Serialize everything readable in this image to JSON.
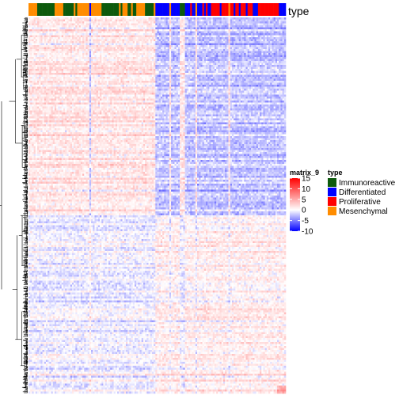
{
  "chart_data": {
    "type": "heatmap",
    "annotation_name": "type",
    "matrix_legend": {
      "title": "matrix_9",
      "ticks": [
        15,
        10,
        5,
        0,
        -5,
        -10
      ],
      "range": [
        -10,
        15
      ],
      "colors": {
        "low": "#0000ff",
        "mid": "#ffffff",
        "high": "#ff0000"
      }
    },
    "annotation_legend": {
      "title": "type",
      "entries": [
        {
          "label": "Immunoreactive",
          "color": "#0d5a0d"
        },
        {
          "label": "Differentiated",
          "color": "#0000ff"
        },
        {
          "label": "Proliferative",
          "color": "#ff0000"
        },
        {
          "label": "Mesenchymal",
          "color": "#ff8c00"
        }
      ]
    },
    "column_annotation": [
      "Mesenchymal",
      "Mesenchymal",
      "Mesenchymal",
      "Mesenchymal",
      "Mesenchymal",
      "Immunoreactive",
      "Immunoreactive",
      "Immunoreactive",
      "Immunoreactive",
      "Immunoreactive",
      "Immunoreactive",
      "Immunoreactive",
      "Immunoreactive",
      "Immunoreactive",
      "Immunoreactive",
      "Mesenchymal",
      "Mesenchymal",
      "Mesenchymal",
      "Mesenchymal",
      "Mesenchymal",
      "Immunoreactive",
      "Immunoreactive",
      "Immunoreactive",
      "Immunoreactive",
      "Immunoreactive",
      "Immunoreactive",
      "Mesenchymal",
      "Immunoreactive",
      "Mesenchymal",
      "Mesenchymal",
      "Mesenchymal",
      "Mesenchymal",
      "Mesenchymal",
      "Mesenchymal",
      "Mesenchymal",
      "Differentiated",
      "Mesenchymal",
      "Mesenchymal",
      "Mesenchymal",
      "Mesenchymal",
      "Mesenchymal",
      "Mesenchymal",
      "Immunoreactive",
      "Immunoreactive",
      "Immunoreactive",
      "Immunoreactive",
      "Immunoreactive",
      "Immunoreactive",
      "Immunoreactive",
      "Immunoreactive",
      "Immunoreactive",
      "Immunoreactive",
      "Mesenchymal",
      "Immunoreactive",
      "Mesenchymal",
      "Mesenchymal",
      "Mesenchymal",
      "Immunoreactive",
      "Immunoreactive",
      "Mesenchymal",
      "Immunoreactive",
      "Immunoreactive",
      "Mesenchymal",
      "Mesenchymal",
      "Mesenchymal",
      "Mesenchymal",
      "Mesenchymal",
      "Immunoreactive",
      "Immunoreactive",
      "Immunoreactive",
      "Immunoreactive",
      "Immunoreactive",
      "Mesenchymal",
      "Differentiated",
      "Differentiated",
      "Differentiated",
      "Differentiated",
      "Differentiated",
      "Differentiated",
      "Differentiated",
      "Differentiated",
      "Mesenchymal",
      "Differentiated",
      "Differentiated",
      "Differentiated",
      "Differentiated",
      "Differentiated",
      "Immunoreactive",
      "Immunoreactive",
      "Immunoreactive",
      "Differentiated",
      "Differentiated",
      "Differentiated",
      "Proliferative",
      "Differentiated",
      "Differentiated",
      "Mesenchymal",
      "Differentiated",
      "Differentiated",
      "Differentiated",
      "Proliferative",
      "Differentiated",
      "Proliferative",
      "Differentiated",
      "Differentiated",
      "Proliferative",
      "Proliferative",
      "Proliferative",
      "Proliferative",
      "Proliferative",
      "Differentiated",
      "Proliferative",
      "Proliferative",
      "Proliferative",
      "Proliferative",
      "Mesenchymal",
      "Proliferative",
      "Proliferative",
      "Differentiated",
      "Proliferative",
      "Proliferative",
      "Differentiated",
      "Proliferative",
      "Proliferative",
      "Proliferative",
      "Differentiated",
      "Proliferative",
      "Proliferative",
      "Proliferative",
      "Differentiated",
      "Differentiated",
      "Differentiated",
      "Proliferative",
      "Proliferative",
      "Proliferative",
      "Proliferative",
      "Proliferative",
      "Proliferative",
      "Proliferative",
      "Proliferative",
      "Proliferative",
      "Proliferative",
      "Proliferative",
      "Proliferative",
      "Differentiated",
      "Differentiated",
      "Differentiated",
      "Differentiated"
    ]
  }
}
